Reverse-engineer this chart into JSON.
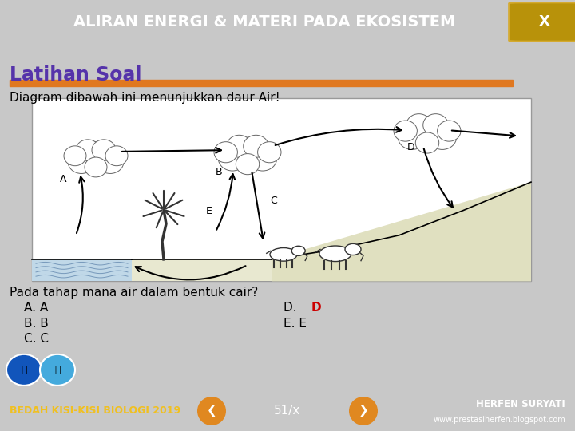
{
  "title": "ALIRAN ENERGI & MATERI PADA EKOSISTEM",
  "title_bg": "#1e3d5f",
  "title_color": "#ffffff",
  "x_button_bg": "#b8920a",
  "x_button_text": "X",
  "section_title": "Latihan Soal",
  "section_title_color": "#5533aa",
  "orange_bar_color": "#e07820",
  "body_bg": "#c8c8c8",
  "question_text": "Diagram dibawah ini menunjukkan daur Air!",
  "answer_A": "A. A",
  "answer_B": "B. B",
  "answer_C": "C. C",
  "answer_D_prefix": "D. ",
  "answer_D_letter": "D",
  "answer_E": "E. E",
  "answer_D_color": "#cc0000",
  "question_prompt": "Pada tahap mana air dalam bentuk cair?",
  "footer_bg": "#606060",
  "footer_text": "BEDAH KISI-KISI BIOLOGI 2019",
  "footer_text_color": "#f0c020",
  "page_number": "51/x",
  "footer_right1": "HERFEN SURYATI",
  "footer_right2": "www.prestasiherfen.blogspot.com",
  "footer_right_color": "#ffffff",
  "nav_btn_color": "#e08820"
}
